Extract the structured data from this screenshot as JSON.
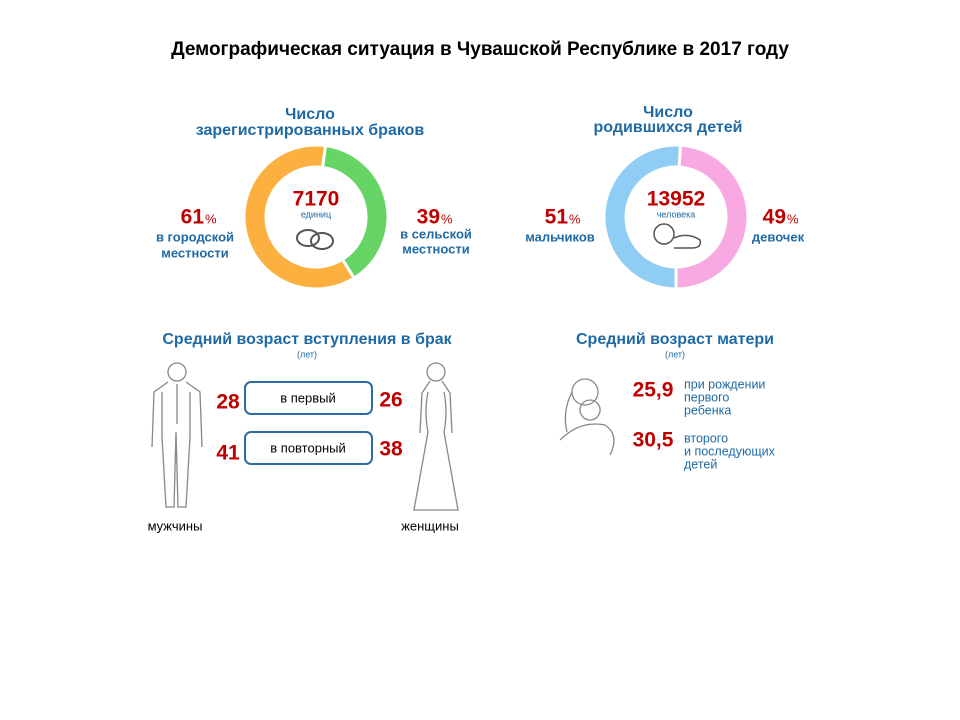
{
  "title": "Демографическая ситуация в Чувашской Республике в 2017 году",
  "marriages": {
    "heading": [
      "Число",
      "зарегистрированных браков"
    ],
    "total": 7170,
    "unit": "единиц",
    "percent_sign": "%",
    "segments": [
      {
        "value": 61,
        "label": [
          "в городской",
          "местности"
        ],
        "color": "#fbb040"
      },
      {
        "value": 39,
        "label": [
          "в сельской",
          "местности"
        ],
        "color": "#66d566"
      }
    ]
  },
  "births": {
    "heading": [
      "Число",
      "родившихся детей"
    ],
    "total": 13952,
    "unit": "человека",
    "percent_sign": "%",
    "segments": [
      {
        "value": 51,
        "label": [
          "мальчиков"
        ],
        "color": "#8fcdf5"
      },
      {
        "value": 49,
        "label": [
          "девочек"
        ],
        "color": "#f9a9e1"
      }
    ]
  },
  "marriage_age": {
    "heading": "Средний возраст вступления в брак",
    "unit": "(лет)",
    "rows": [
      {
        "label": "в первый",
        "men": 28,
        "women": 26
      },
      {
        "label": "в повторный",
        "men": 41,
        "women": 38
      }
    ],
    "men_label": "мужчины",
    "women_label": "женщины"
  },
  "mother_age": {
    "heading": "Средний возраст матери",
    "unit": "(лет)",
    "rows": [
      {
        "value": "25,9",
        "label": [
          "при рождении",
          "первого",
          "ребенка"
        ]
      },
      {
        "value": "30,5",
        "label": [
          "второго",
          "и последующих",
          "детей"
        ]
      }
    ]
  }
}
